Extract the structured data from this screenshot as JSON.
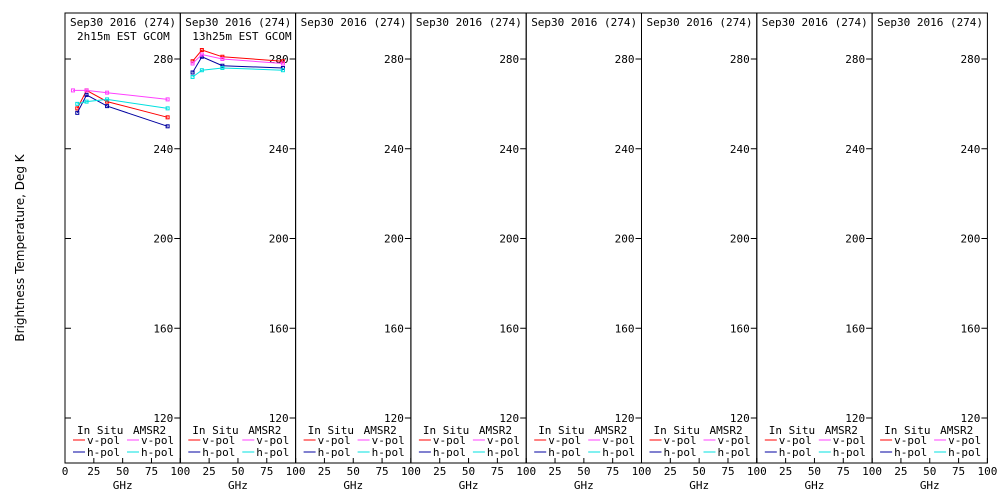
{
  "chart_data": {
    "type": "line",
    "ylabel": "Brightness Temperature, Deg K",
    "xlabel": "GHz",
    "ylim": [
      110,
      295
    ],
    "xlim": [
      0,
      100
    ],
    "yticks": [
      120,
      160,
      200,
      240,
      280
    ],
    "xticks": [
      0,
      25,
      50,
      75,
      100
    ],
    "legend": {
      "placement": "bottom",
      "group_left": "In Situ",
      "group_right": "AMSR2",
      "v_label": "v-pol",
      "h_label": "h-pol"
    },
    "colors": {
      "insitu_v": "#ff0000",
      "insitu_h": "#0000a0",
      "amsr2_v": "#ff40ff",
      "amsr2_h": "#00e0e0"
    },
    "panels": [
      {
        "date": "Sep30 2016 (274)",
        "subtitle": "2h15m EST GCOM",
        "series": [
          {
            "name": "In Situ v-pol",
            "key": "insitu_v",
            "x": [
              10.65,
              18.7,
              36.5,
              89
            ],
            "y": [
              258,
              266,
              261,
              254
            ]
          },
          {
            "name": "In Situ h-pol",
            "key": "insitu_h",
            "x": [
              10.65,
              18.7,
              36.5,
              89
            ],
            "y": [
              256,
              264,
              259,
              250
            ]
          },
          {
            "name": "AMSR2 v-pol",
            "key": "amsr2_v",
            "x": [
              6.9,
              18.7,
              36.5,
              89
            ],
            "y": [
              266,
              266,
              265,
              262
            ]
          },
          {
            "name": "AMSR2 h-pol",
            "key": "amsr2_h",
            "x": [
              10.65,
              18.7,
              36.5,
              89
            ],
            "y": [
              260,
              261,
              262,
              258
            ]
          }
        ]
      },
      {
        "date": "Sep30 2016 (274)",
        "subtitle": "13h25m EST GCOM",
        "series": [
          {
            "name": "In Situ v-pol",
            "key": "insitu_v",
            "x": [
              10.65,
              18.7,
              36.5,
              89
            ],
            "y": [
              279,
              284,
              281,
              279
            ]
          },
          {
            "name": "In Situ h-pol",
            "key": "insitu_h",
            "x": [
              10.65,
              18.7,
              36.5,
              89
            ],
            "y": [
              274,
              281,
              277,
              276
            ]
          },
          {
            "name": "AMSR2 v-pol",
            "key": "amsr2_v",
            "x": [
              10.65,
              18.7,
              36.5,
              89
            ],
            "y": [
              278,
              282,
              280,
              278
            ]
          },
          {
            "name": "AMSR2 h-pol",
            "key": "amsr2_h",
            "x": [
              10.65,
              18.7,
              36.5,
              89
            ],
            "y": [
              272,
              275,
              276,
              275
            ]
          }
        ]
      },
      {
        "date": "Sep30 2016 (274)",
        "subtitle": "",
        "series": []
      },
      {
        "date": "Sep30 2016 (274)",
        "subtitle": "",
        "series": []
      },
      {
        "date": "Sep30 2016 (274)",
        "subtitle": "",
        "series": []
      },
      {
        "date": "Sep30 2016 (274)",
        "subtitle": "",
        "series": []
      },
      {
        "date": "Sep30 2016 (274)",
        "subtitle": "",
        "series": []
      },
      {
        "date": "Sep30 2016 (274)",
        "subtitle": "",
        "series": []
      }
    ]
  }
}
